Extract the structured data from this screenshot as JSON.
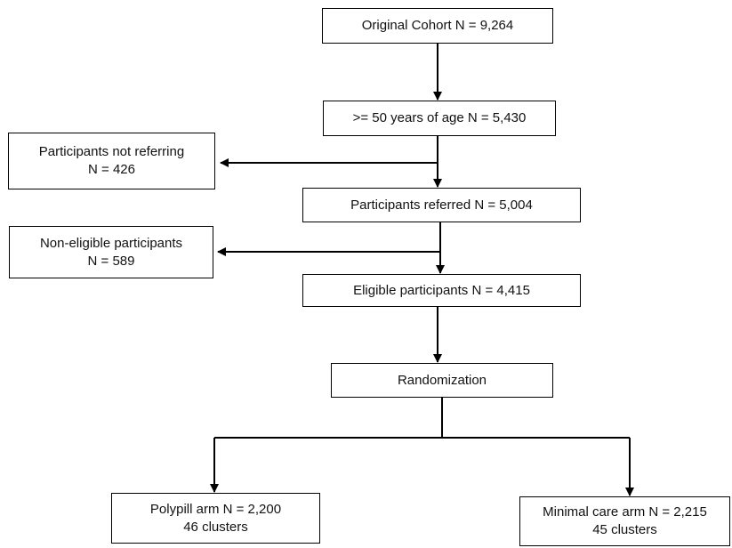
{
  "flowchart": {
    "original_cohort": "Original Cohort N = 9,264",
    "age_50": ">= 50 years of age N = 5,430",
    "not_referring": {
      "line1": "Participants not referring",
      "line2": "N = 426"
    },
    "referred": "Participants referred N = 5,004",
    "non_eligible": {
      "line1": "Non-eligible participants",
      "line2": "N = 589"
    },
    "eligible": "Eligible participants N = 4,415",
    "randomization": "Randomization",
    "polypill": {
      "line1": "Polypill arm N = 2,200",
      "line2": "46 clusters"
    },
    "minimal_care": {
      "line1": "Minimal care arm N = 2,215",
      "line2": "45 clusters"
    }
  },
  "colors": {
    "line": "#000000",
    "box_border": "#000000",
    "background": "#ffffff"
  }
}
